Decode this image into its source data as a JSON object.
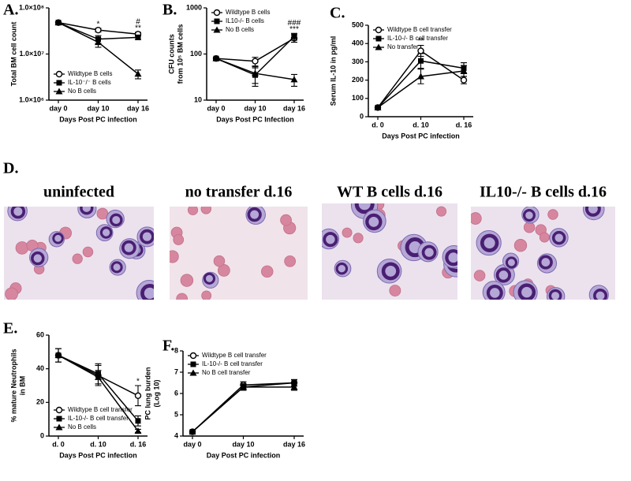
{
  "chart_data": [
    {
      "type": "line",
      "panel": "A.",
      "ylabel": [
        "Total BM cell count"
      ],
      "xlabel": "Days Post PC infection",
      "categories": [
        "day 0",
        "day 10",
        "day 16"
      ],
      "log_y": true,
      "ylim": [
        1000000,
        100000000
      ],
      "yticks": [
        {
          "value": 1000000,
          "label": "1.0×10⁶"
        },
        {
          "value": 10000000,
          "label": "1.0×10⁷"
        },
        {
          "value": 100000000,
          "label": "1.0×10⁸"
        }
      ],
      "legend": "lower left",
      "series": [
        {
          "name": "Wildtype B cells",
          "color": "#000000",
          "marker": "open-circle",
          "values": [
            48000000,
            33000000,
            27000000
          ],
          "errors": [
            2000000,
            3000000,
            2500000
          ]
        },
        {
          "name": "IL-10⁻/⁻ B cells",
          "color": "#000000",
          "marker": "square",
          "values": [
            48000000,
            21000000,
            23000000
          ],
          "errors": [
            2000000,
            4000000,
            2500000
          ]
        },
        {
          "name": "No B cells",
          "color": "#000000",
          "marker": "triangle",
          "values": [
            48000000,
            18000000,
            3700000
          ],
          "errors": [
            2000000,
            4000000,
            800000
          ]
        }
      ],
      "annotations": [
        {
          "text": "*",
          "x": "day 10"
        },
        {
          "text": "**",
          "x": "day 16"
        },
        {
          "text": "#",
          "x": "day 16"
        }
      ]
    },
    {
      "type": "line",
      "panel": "B.",
      "ylabel": [
        "CFU counts",
        "from 10⁵ BM cells"
      ],
      "xlabel": "Days Post PC Infection",
      "categories": [
        "day 0",
        "day 10",
        "day 16"
      ],
      "log_y": true,
      "ylim": [
        10,
        1000
      ],
      "yticks": [
        10,
        100,
        1000
      ],
      "legend": "upper left",
      "series": [
        {
          "name": "Wildtype B cells",
          "color": "#000000",
          "marker": "open-circle",
          "values": [
            80,
            70,
            220
          ],
          "errors": [
            5,
            15,
            40
          ]
        },
        {
          "name": "IL10-/- B cells",
          "color": "#000000",
          "marker": "square",
          "values": [
            80,
            35,
            240
          ],
          "errors": [
            5,
            15,
            40
          ]
        },
        {
          "name": "No B cells",
          "color": "#000000",
          "marker": "triangle",
          "values": [
            80,
            38,
            28
          ],
          "errors": [
            5,
            15,
            8
          ]
        }
      ],
      "annotations": [
        {
          "text": "***",
          "x": "day 16"
        },
        {
          "text": "###",
          "x": "day 16"
        }
      ]
    },
    {
      "type": "line",
      "panel": "C.",
      "ylabel": [
        "Serum IL-10 in pg/ml"
      ],
      "xlabel": "Days Post PC infection",
      "categories": [
        "d. 0",
        "d. 10",
        "d. 16"
      ],
      "log_y": false,
      "ylim": [
        0,
        500
      ],
      "yticks": [
        0,
        100,
        200,
        300,
        400,
        500
      ],
      "legend": "upper left",
      "series": [
        {
          "name": "Wildtype B cell transfer",
          "color": "#000000",
          "marker": "open-circle",
          "values": [
            50,
            360,
            200
          ],
          "errors": [
            5,
            30,
            20
          ]
        },
        {
          "name": "IL-10-/- B cell transfer",
          "color": "#000000",
          "marker": "square",
          "values": [
            50,
            305,
            265
          ],
          "errors": [
            5,
            40,
            30
          ]
        },
        {
          "name": "No transfer",
          "color": "#000000",
          "marker": "triangle",
          "values": [
            50,
            220,
            250
          ],
          "errors": [
            5,
            40,
            30
          ]
        }
      ],
      "annotations": [
        {
          "text": "**",
          "x": "d. 10"
        }
      ]
    },
    {
      "type": "line",
      "panel": "E.",
      "ylabel": [
        "% mature Neutrophils",
        "in BM"
      ],
      "xlabel": "Days Post PC infection",
      "categories": [
        "d. 0",
        "d. 10",
        "d. 16"
      ],
      "log_y": false,
      "ylim": [
        0,
        60
      ],
      "yticks": [
        0,
        20,
        40,
        60
      ],
      "legend": "lower left",
      "series": [
        {
          "name": "Wildtype B cell transfer",
          "color": "#000000",
          "marker": "open-circle",
          "values": [
            48,
            36,
            24
          ],
          "errors": [
            4,
            6,
            6
          ]
        },
        {
          "name": "IL-10-/- B cell transfer",
          "color": "#000000",
          "marker": "square",
          "values": [
            48,
            37,
            9
          ],
          "errors": [
            4,
            6,
            3
          ]
        },
        {
          "name": "No B cells",
          "color": "#000000",
          "marker": "triangle",
          "values": [
            48,
            35,
            3
          ],
          "errors": [
            4,
            4,
            1
          ]
        }
      ],
      "annotations": [
        {
          "text": "*",
          "x": "d. 16"
        }
      ]
    },
    {
      "type": "line",
      "panel": "F.",
      "ylabel": [
        "PC lung burden",
        "(Log 10)"
      ],
      "xlabel": "Day Post PC infection",
      "categories": [
        "day 0",
        "day 10",
        "day 16"
      ],
      "log_y": false,
      "ylim": [
        4,
        8
      ],
      "yticks": [
        4,
        5,
        6,
        7,
        8
      ],
      "legend": "upper left",
      "series": [
        {
          "name": "Wildtype B cell transfer",
          "color": "#000000",
          "marker": "open-circle",
          "values": [
            4.2,
            6.4,
            6.5
          ],
          "errors": [
            0.05,
            0.15,
            0.15
          ]
        },
        {
          "name": "IL-10-/- B cell transfer",
          "color": "#000000",
          "marker": "square",
          "values": [
            4.2,
            6.3,
            6.5
          ],
          "errors": [
            0.05,
            0.15,
            0.15
          ]
        },
        {
          "name": "No B cell transfer",
          "color": "#000000",
          "marker": "triangle",
          "values": [
            4.2,
            6.3,
            6.3
          ],
          "errors": [
            0.05,
            0.15,
            0.15
          ]
        }
      ],
      "annotations": []
    }
  ],
  "micrographs": {
    "panel": "D.",
    "labels": [
      "uninfected",
      "no transfer d.16",
      "WT B cells d.16",
      "IL10-/- B cells d.16"
    ]
  }
}
